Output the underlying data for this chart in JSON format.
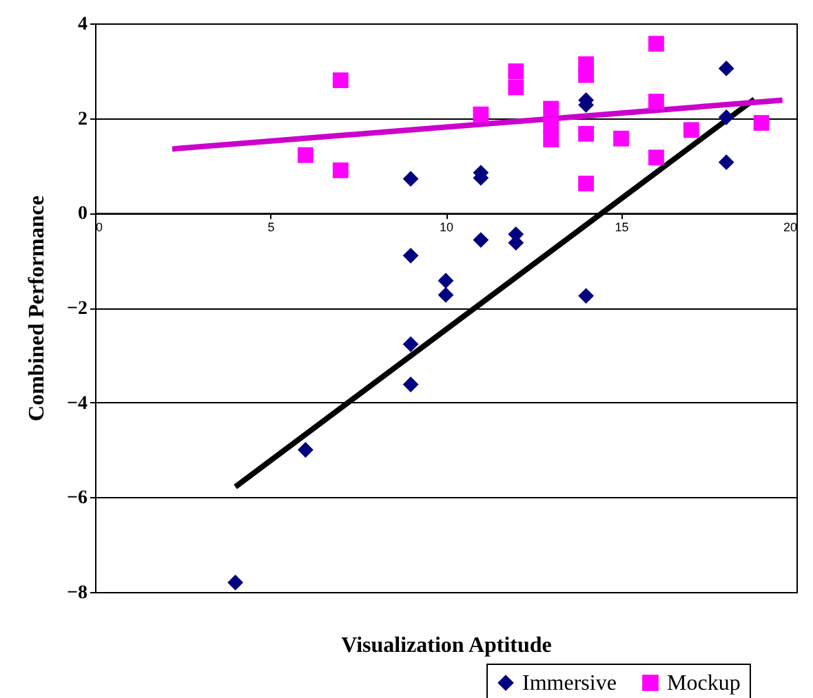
{
  "chart_data": {
    "type": "scatter",
    "xlabel": "Visualization Aptitude",
    "ylabel": "Combined Performance",
    "xlim": [
      0,
      20
    ],
    "xticks": [
      0,
      5,
      10,
      15,
      20
    ],
    "ylim": [
      -8,
      4
    ],
    "yticks": [
      -8,
      -6,
      -4,
      -2,
      0,
      2,
      4
    ],
    "grid": "y",
    "legend": "bottom right",
    "series": [
      {
        "name": "Immersive",
        "color": "#000080",
        "marker": "diamond",
        "x": [
          18,
          14,
          14,
          18,
          18,
          9,
          11,
          11,
          11,
          12,
          12,
          9,
          10,
          10,
          14,
          9,
          9,
          6,
          4
        ],
        "values": [
          3.05,
          2.38,
          2.28,
          2.02,
          1.07,
          0.72,
          0.85,
          0.74,
          -0.57,
          -0.45,
          -0.63,
          -0.9,
          -1.43,
          -1.73,
          -1.75,
          -2.77,
          -3.62,
          -5.0,
          -7.8
        ]
      },
      {
        "name": "Mockup",
        "color": "#ff00ff",
        "marker": "square",
        "x": [
          16,
          14,
          14,
          12,
          12,
          7,
          13,
          13,
          13,
          16,
          11,
          19,
          17,
          14,
          15,
          6,
          16,
          7,
          14
        ],
        "values": [
          3.57,
          3.14,
          2.91,
          2.99,
          2.65,
          2.8,
          2.2,
          1.85,
          1.55,
          2.35,
          2.08,
          1.9,
          1.75,
          1.67,
          1.57,
          1.22,
          1.17,
          0.9,
          0.62
        ]
      },
      {
        "type": "line",
        "color": "#000000",
        "x": [
          4,
          18.8
        ],
        "values": [
          -5.78,
          2.4
        ]
      },
      {
        "type": "line",
        "color": "#cc00cc",
        "x": [
          2.2,
          19.6
        ],
        "values": [
          1.35,
          2.38
        ]
      }
    ]
  }
}
